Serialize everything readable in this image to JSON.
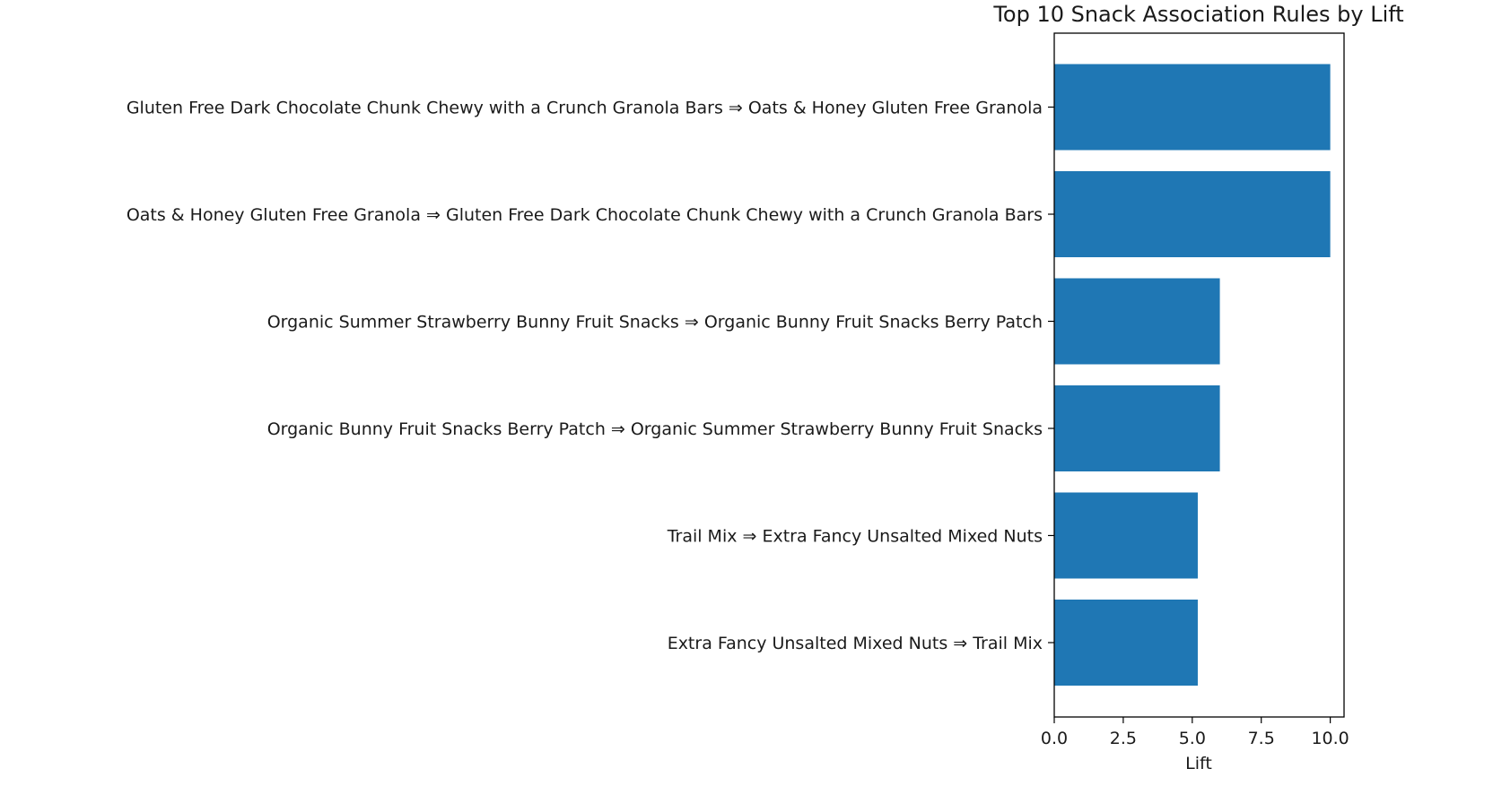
{
  "chart_data": {
    "type": "bar",
    "orientation": "horizontal",
    "title": "Top 10 Snack Association Rules by Lift",
    "xlabel": "Lift",
    "ylabel": "",
    "xlim": [
      0,
      10.5
    ],
    "xticks": [
      "0.0",
      "2.5",
      "5.0",
      "7.5",
      "10.0"
    ],
    "xtick_values": [
      0,
      2.5,
      5,
      7.5,
      10
    ],
    "grid": false,
    "legend": "none",
    "bar_color": "#1f77b4",
    "categories": [
      "Gluten Free Dark Chocolate Chunk Chewy with a Crunch Granola Bars ⇒ Oats & Honey Gluten Free Granola",
      "Oats & Honey Gluten Free Granola ⇒ Gluten Free Dark Chocolate Chunk Chewy with a Crunch Granola Bars",
      "Organic Summer Strawberry Bunny Fruit Snacks ⇒ Organic Bunny Fruit Snacks Berry Patch",
      "Organic Bunny Fruit Snacks Berry Patch ⇒ Organic Summer Strawberry Bunny Fruit Snacks",
      "Trail Mix ⇒ Extra Fancy Unsalted Mixed Nuts",
      "Extra Fancy Unsalted Mixed Nuts ⇒ Trail Mix"
    ],
    "values": [
      10.0,
      10.0,
      6.0,
      6.0,
      5.2,
      5.2
    ]
  }
}
